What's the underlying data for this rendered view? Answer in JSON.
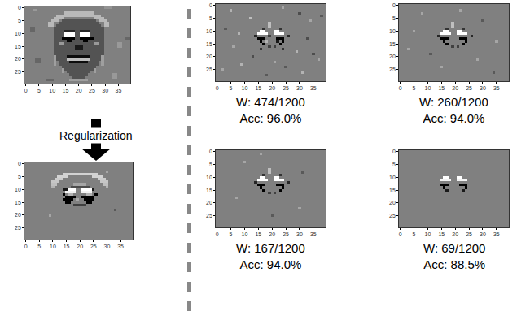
{
  "chart_data": [
    {
      "type": "heatmap",
      "xlim": [
        -0.5,
        39.5
      ],
      "ylim": [
        29.5,
        -0.5
      ],
      "xticks": [
        0,
        5,
        10,
        15,
        20,
        25,
        30,
        35
      ],
      "yticks": [
        0,
        5,
        10,
        15,
        20,
        25
      ],
      "zlim": [
        -1,
        1
      ],
      "background": 0,
      "cells": [
        [
          1,
          1,
          3,
          4,
          0.2
        ],
        [
          8,
          9,
          2,
          3,
          -0.2
        ],
        [
          14,
          15,
          35,
          36,
          0.2
        ],
        [
          20,
          21,
          4,
          5,
          -0.2
        ],
        [
          26,
          27,
          33,
          34,
          0.2
        ],
        [
          28,
          28,
          8,
          10,
          -0.2
        ],
        [
          12,
          12,
          38,
          39,
          -0.2
        ],
        [
          0,
          0,
          30,
          32,
          0.15
        ],
        [
          2,
          2,
          15,
          25,
          0.45
        ],
        [
          3,
          3,
          12,
          28,
          0.45
        ],
        [
          4,
          4,
          11,
          14,
          0.45
        ],
        [
          4,
          4,
          26,
          29,
          0.45
        ],
        [
          5,
          5,
          10,
          12,
          0.45
        ],
        [
          5,
          5,
          28,
          30,
          0.45
        ],
        [
          6,
          7,
          9,
          10,
          0.45
        ],
        [
          6,
          7,
          30,
          31,
          0.45
        ],
        [
          5,
          5,
          14,
          26,
          -0.35
        ],
        [
          6,
          6,
          13,
          27,
          -0.35
        ],
        [
          7,
          7,
          12,
          28,
          -0.35
        ],
        [
          8,
          18,
          11,
          29,
          -0.35
        ],
        [
          19,
          20,
          12,
          28,
          -0.35
        ],
        [
          21,
          22,
          13,
          27,
          -0.35
        ],
        [
          23,
          23,
          14,
          26,
          -0.35
        ],
        [
          24,
          24,
          15,
          25,
          -0.35
        ],
        [
          25,
          25,
          16,
          24,
          -0.35
        ],
        [
          26,
          26,
          17,
          23,
          -0.35
        ],
        [
          27,
          27,
          18,
          22,
          -0.35
        ],
        [
          19,
          22,
          11,
          11,
          0.25
        ],
        [
          19,
          22,
          29,
          29,
          0.25
        ],
        [
          24,
          25,
          14,
          14,
          0.25
        ],
        [
          24,
          25,
          26,
          26,
          0.25
        ],
        [
          28,
          28,
          17,
          23,
          0.25
        ],
        [
          9,
          9,
          15,
          18,
          -0.7
        ],
        [
          9,
          9,
          21,
          24,
          -0.7
        ],
        [
          10,
          11,
          15,
          18,
          1
        ],
        [
          10,
          11,
          21,
          24,
          1
        ],
        [
          12,
          12,
          14,
          18,
          -1
        ],
        [
          12,
          12,
          21,
          25,
          -1
        ],
        [
          13,
          13,
          16,
          17,
          -1
        ],
        [
          13,
          13,
          22,
          23,
          -1
        ],
        [
          14,
          14,
          13,
          14,
          0.2
        ],
        [
          14,
          14,
          26,
          27,
          0.2
        ],
        [
          15,
          16,
          19,
          21,
          -0.8
        ],
        [
          19,
          19,
          16,
          24,
          -0.9
        ],
        [
          20,
          20,
          16,
          24,
          0.5
        ],
        [
          21,
          21,
          17,
          23,
          -0.9
        ]
      ]
    },
    {
      "type": "heatmap",
      "xlim": [
        -0.5,
        39.5
      ],
      "ylim": [
        29.5,
        -0.5
      ],
      "xticks": [
        0,
        5,
        10,
        15,
        20,
        25,
        30,
        35
      ],
      "yticks": [
        0,
        5,
        10,
        15,
        20,
        25
      ],
      "zlim": [
        -1,
        1
      ],
      "background": 0,
      "cells": [
        [
          4,
          4,
          14,
          26,
          0.65
        ],
        [
          5,
          5,
          12,
          15,
          0.65
        ],
        [
          5,
          5,
          25,
          28,
          0.65
        ],
        [
          6,
          6,
          11,
          13,
          0.6
        ],
        [
          6,
          6,
          27,
          29,
          0.6
        ],
        [
          7,
          7,
          10,
          12,
          0.55
        ],
        [
          7,
          7,
          28,
          30,
          0.55
        ],
        [
          8,
          8,
          10,
          11,
          0.5
        ],
        [
          8,
          8,
          29,
          30,
          0.5
        ],
        [
          9,
          9,
          10,
          10,
          0.4
        ],
        [
          9,
          9,
          30,
          30,
          0.4
        ],
        [
          8,
          8,
          18,
          22,
          0.3
        ],
        [
          9,
          9,
          17,
          23,
          -0.4
        ],
        [
          10,
          10,
          14,
          15,
          -0.8
        ],
        [
          10,
          10,
          16,
          18,
          1
        ],
        [
          10,
          10,
          21,
          24,
          1
        ],
        [
          10,
          10,
          25,
          25,
          -0.8
        ],
        [
          11,
          11,
          15,
          18,
          0.9
        ],
        [
          11,
          11,
          21,
          24,
          0.9
        ],
        [
          12,
          12,
          14,
          14,
          -1
        ],
        [
          12,
          12,
          16,
          17,
          0.4
        ],
        [
          12,
          12,
          23,
          24,
          0.4
        ],
        [
          12,
          12,
          26,
          26,
          -1
        ],
        [
          13,
          13,
          15,
          18,
          -1
        ],
        [
          13,
          13,
          21,
          25,
          -1
        ],
        [
          14,
          14,
          14,
          17,
          -1
        ],
        [
          14,
          14,
          19,
          19,
          0.3
        ],
        [
          14,
          14,
          22,
          25,
          -1
        ],
        [
          15,
          15,
          15,
          16,
          -1
        ],
        [
          15,
          15,
          23,
          24,
          -1
        ],
        [
          16,
          16,
          18,
          22,
          -0.5
        ],
        [
          3,
          3,
          30,
          30,
          0.3
        ],
        [
          20,
          20,
          9,
          9,
          0.3
        ],
        [
          18,
          18,
          33,
          33,
          -0.3
        ]
      ]
    },
    {
      "type": "heatmap",
      "xlim": [
        -0.5,
        39.5
      ],
      "ylim": [
        29.5,
        -0.5
      ],
      "xticks": [
        0,
        5,
        10,
        15,
        20,
        25,
        30,
        35
      ],
      "yticks": [
        0,
        5,
        10,
        15,
        20,
        25
      ],
      "zlim": [
        -1,
        1
      ],
      "background": 0,
      "caption": [
        "W: 474/1200",
        "Acc: 96.0%"
      ],
      "cells": [
        [
          7,
          8,
          19,
          19,
          0.5
        ],
        [
          9,
          9,
          17,
          17,
          -0.6
        ],
        [
          9,
          9,
          23,
          23,
          -0.6
        ],
        [
          10,
          10,
          16,
          17,
          1
        ],
        [
          10,
          10,
          21,
          22,
          1
        ],
        [
          11,
          11,
          15,
          18,
          1
        ],
        [
          11,
          11,
          21,
          24,
          1
        ],
        [
          12,
          12,
          14,
          14,
          -0.7
        ],
        [
          12,
          12,
          19,
          19,
          -0.5
        ],
        [
          12,
          12,
          26,
          26,
          -0.7
        ],
        [
          13,
          13,
          15,
          17,
          -1
        ],
        [
          13,
          13,
          22,
          24,
          -1
        ],
        [
          14,
          14,
          16,
          16,
          -1
        ],
        [
          14,
          14,
          18,
          18,
          0.4
        ],
        [
          14,
          14,
          22,
          22,
          -0.8
        ],
        [
          14,
          14,
          24,
          24,
          -1
        ],
        [
          15,
          15,
          17,
          17,
          -1
        ],
        [
          15,
          15,
          23,
          23,
          -1
        ],
        [
          16,
          16,
          19,
          19,
          -0.5
        ],
        [
          16,
          16,
          21,
          21,
          -0.5
        ],
        [
          17,
          17,
          16,
          16,
          -0.6
        ],
        [
          17,
          17,
          24,
          24,
          -0.6
        ],
        [
          2,
          2,
          5,
          5,
          0.4
        ],
        [
          3,
          3,
          30,
          30,
          -0.4
        ],
        [
          5,
          5,
          12,
          12,
          0.5
        ],
        [
          6,
          6,
          34,
          34,
          0.3
        ],
        [
          9,
          9,
          3,
          3,
          -0.3
        ],
        [
          11,
          11,
          8,
          8,
          0.4
        ],
        [
          13,
          13,
          33,
          33,
          -0.4
        ],
        [
          16,
          16,
          6,
          6,
          0.3
        ],
        [
          18,
          18,
          29,
          29,
          0.4
        ],
        [
          20,
          20,
          13,
          13,
          -0.4
        ],
        [
          21,
          21,
          37,
          37,
          0.3
        ],
        [
          23,
          23,
          9,
          9,
          0.4
        ],
        [
          24,
          24,
          25,
          25,
          -0.3
        ],
        [
          25,
          25,
          2,
          2,
          0.3
        ],
        [
          26,
          26,
          31,
          31,
          0.4
        ],
        [
          27,
          27,
          18,
          18,
          -0.3
        ],
        [
          1,
          1,
          24,
          24,
          0.3
        ],
        [
          4,
          4,
          38,
          38,
          -0.3
        ],
        [
          22,
          22,
          21,
          21,
          0.3
        ],
        [
          19,
          19,
          35,
          35,
          -0.4
        ]
      ]
    },
    {
      "type": "heatmap",
      "xlim": [
        -0.5,
        39.5
      ],
      "ylim": [
        29.5,
        -0.5
      ],
      "xticks": [
        0,
        5,
        10,
        15,
        20,
        25,
        30,
        35
      ],
      "yticks": [
        0,
        5,
        10,
        15,
        20,
        25
      ],
      "zlim": [
        -1,
        1
      ],
      "background": 0,
      "cells": [
        [
          7,
          8,
          19,
          19,
          0.5
        ],
        [
          9,
          9,
          17,
          17,
          -0.6
        ],
        [
          9,
          9,
          23,
          23,
          -0.6
        ],
        [
          10,
          10,
          16,
          17,
          1
        ],
        [
          10,
          10,
          21,
          22,
          1
        ],
        [
          11,
          11,
          15,
          18,
          1
        ],
        [
          11,
          11,
          21,
          24,
          1
        ],
        [
          12,
          12,
          14,
          14,
          -0.7
        ],
        [
          12,
          12,
          26,
          26,
          -0.7
        ],
        [
          13,
          13,
          15,
          17,
          -1
        ],
        [
          13,
          13,
          22,
          24,
          -1
        ],
        [
          14,
          14,
          16,
          16,
          -1
        ],
        [
          14,
          14,
          24,
          24,
          -1
        ],
        [
          15,
          15,
          17,
          17,
          -1
        ],
        [
          15,
          15,
          23,
          23,
          -1
        ],
        [
          16,
          16,
          19,
          19,
          -0.5
        ],
        [
          16,
          16,
          21,
          21,
          -0.5
        ],
        [
          3,
          3,
          8,
          8,
          0.3
        ],
        [
          6,
          6,
          30,
          30,
          -0.3
        ],
        [
          10,
          10,
          5,
          5,
          0.3
        ],
        [
          14,
          14,
          35,
          35,
          0.3
        ],
        [
          19,
          19,
          11,
          11,
          -0.3
        ],
        [
          21,
          21,
          28,
          28,
          0.3
        ],
        [
          24,
          24,
          15,
          15,
          0.3
        ],
        [
          26,
          26,
          34,
          34,
          -0.3
        ],
        [
          2,
          2,
          22,
          22,
          0.3
        ],
        [
          17,
          17,
          3,
          3,
          0.3
        ]
      ]
    },
    {
      "type": "heatmap",
      "xlim": [
        -0.5,
        39.5
      ],
      "ylim": [
        29.5,
        -0.5
      ],
      "xticks": [
        0,
        5,
        10,
        15,
        20,
        25,
        30,
        35
      ],
      "yticks": [
        0,
        5,
        10,
        15,
        20,
        25
      ],
      "zlim": [
        -1,
        1
      ],
      "background": 0,
      "caption": [
        "W: 167/1200",
        "Acc: 94.0%"
      ],
      "cells": [
        [
          7,
          8,
          19,
          19,
          0.5
        ],
        [
          9,
          9,
          17,
          17,
          -0.6
        ],
        [
          9,
          9,
          23,
          23,
          -0.6
        ],
        [
          10,
          10,
          16,
          17,
          1
        ],
        [
          10,
          10,
          21,
          22,
          1
        ],
        [
          11,
          11,
          15,
          18,
          1
        ],
        [
          11,
          11,
          21,
          24,
          1
        ],
        [
          12,
          12,
          14,
          14,
          -0.7
        ],
        [
          12,
          12,
          26,
          26,
          -0.7
        ],
        [
          13,
          13,
          15,
          17,
          -1
        ],
        [
          13,
          13,
          22,
          24,
          -1
        ],
        [
          14,
          14,
          16,
          16,
          -1
        ],
        [
          14,
          14,
          24,
          24,
          -1
        ],
        [
          15,
          15,
          17,
          17,
          -1
        ],
        [
          15,
          15,
          23,
          23,
          -1
        ],
        [
          16,
          16,
          19,
          19,
          -0.5
        ],
        [
          16,
          16,
          21,
          21,
          -0.5
        ],
        [
          4,
          4,
          10,
          10,
          0.3
        ],
        [
          8,
          8,
          31,
          31,
          -0.3
        ],
        [
          18,
          18,
          7,
          7,
          0.3
        ],
        [
          22,
          22,
          30,
          30,
          0.3
        ],
        [
          25,
          25,
          20,
          20,
          -0.3
        ],
        [
          1,
          1,
          16,
          16,
          0.3
        ]
      ]
    },
    {
      "type": "heatmap",
      "xlim": [
        -0.5,
        39.5
      ],
      "ylim": [
        29.5,
        -0.5
      ],
      "xticks": [
        0,
        5,
        10,
        15,
        20,
        25,
        30,
        35
      ],
      "yticks": [
        0,
        5,
        10,
        15,
        20,
        25
      ],
      "zlim": [
        -1,
        1
      ],
      "background": 0,
      "caption": [
        "W: 69/1200",
        "Acc: 88.5%"
      ],
      "cells": [
        [
          10,
          10,
          16,
          17,
          1
        ],
        [
          10,
          10,
          21,
          22,
          1
        ],
        [
          11,
          11,
          15,
          18,
          0.9
        ],
        [
          11,
          11,
          21,
          24,
          0.9
        ],
        [
          13,
          13,
          15,
          17,
          -1
        ],
        [
          13,
          13,
          22,
          24,
          -1
        ],
        [
          14,
          14,
          16,
          16,
          -1
        ],
        [
          14,
          14,
          24,
          24,
          -1
        ],
        [
          15,
          15,
          17,
          17,
          -0.8
        ],
        [
          15,
          15,
          23,
          23,
          -0.8
        ]
      ]
    }
  ],
  "panel_captions": [
    {
      "panel": 3,
      "caption": [
        "W: 260/1200",
        "Acc: 94.0%"
      ]
    }
  ],
  "arrow_label": "Regularization"
}
